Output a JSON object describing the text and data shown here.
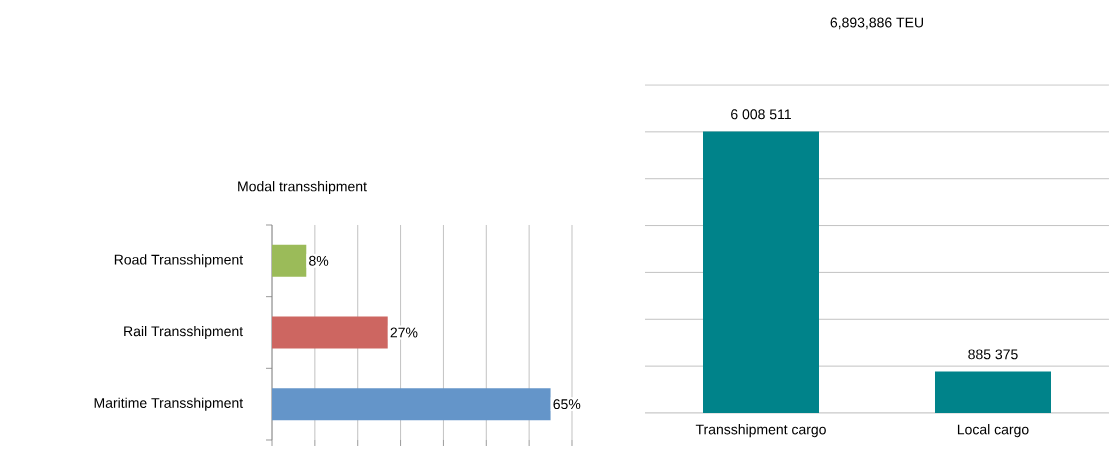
{
  "chart_data": [
    {
      "type": "bar",
      "orientation": "horizontal",
      "title": "Modal transshipment",
      "categories": [
        "Road Transshipment",
        "Rail Transshipment",
        "Maritime Transshipment"
      ],
      "values": [
        8,
        27,
        65
      ],
      "colors": [
        "#9bbb59",
        "#cd6661",
        "#6495c9"
      ],
      "value_labels": [
        "8%",
        "27%",
        "65%"
      ],
      "xlim": [
        0,
        70
      ],
      "xticks": [
        {
          "value": 0,
          "label": null
        },
        {
          "value": 10,
          "label": null
        },
        {
          "value": 20,
          "label": null
        },
        {
          "value": 30,
          "label": null
        },
        {
          "value": 40,
          "label": null
        },
        {
          "value": 50,
          "label": null
        },
        {
          "value": 60,
          "label": null
        },
        {
          "value": 70,
          "label": null
        }
      ],
      "grid": "x",
      "tick_labels": "y"
    },
    {
      "type": "bar",
      "title": "6,893,886 TEU",
      "categories": [
        "Transshipment cargo",
        "Local cargo"
      ],
      "values": [
        6008511,
        885375
      ],
      "color": "#00838a",
      "value_labels": [
        "6 008 511",
        "885 375"
      ],
      "ylim": [
        0,
        7000000
      ],
      "yticks": [
        {
          "value": 0,
          "label": null
        },
        {
          "value": 1000000,
          "label": null
        },
        {
          "value": 2000000,
          "label": null
        },
        {
          "value": 3000000,
          "label": null
        },
        {
          "value": 4000000,
          "label": null
        },
        {
          "value": 5000000,
          "label": null
        },
        {
          "value": 6000000,
          "label": null
        },
        {
          "value": 7000000,
          "label": null
        }
      ],
      "grid": "y",
      "tick_labels": "x"
    }
  ]
}
